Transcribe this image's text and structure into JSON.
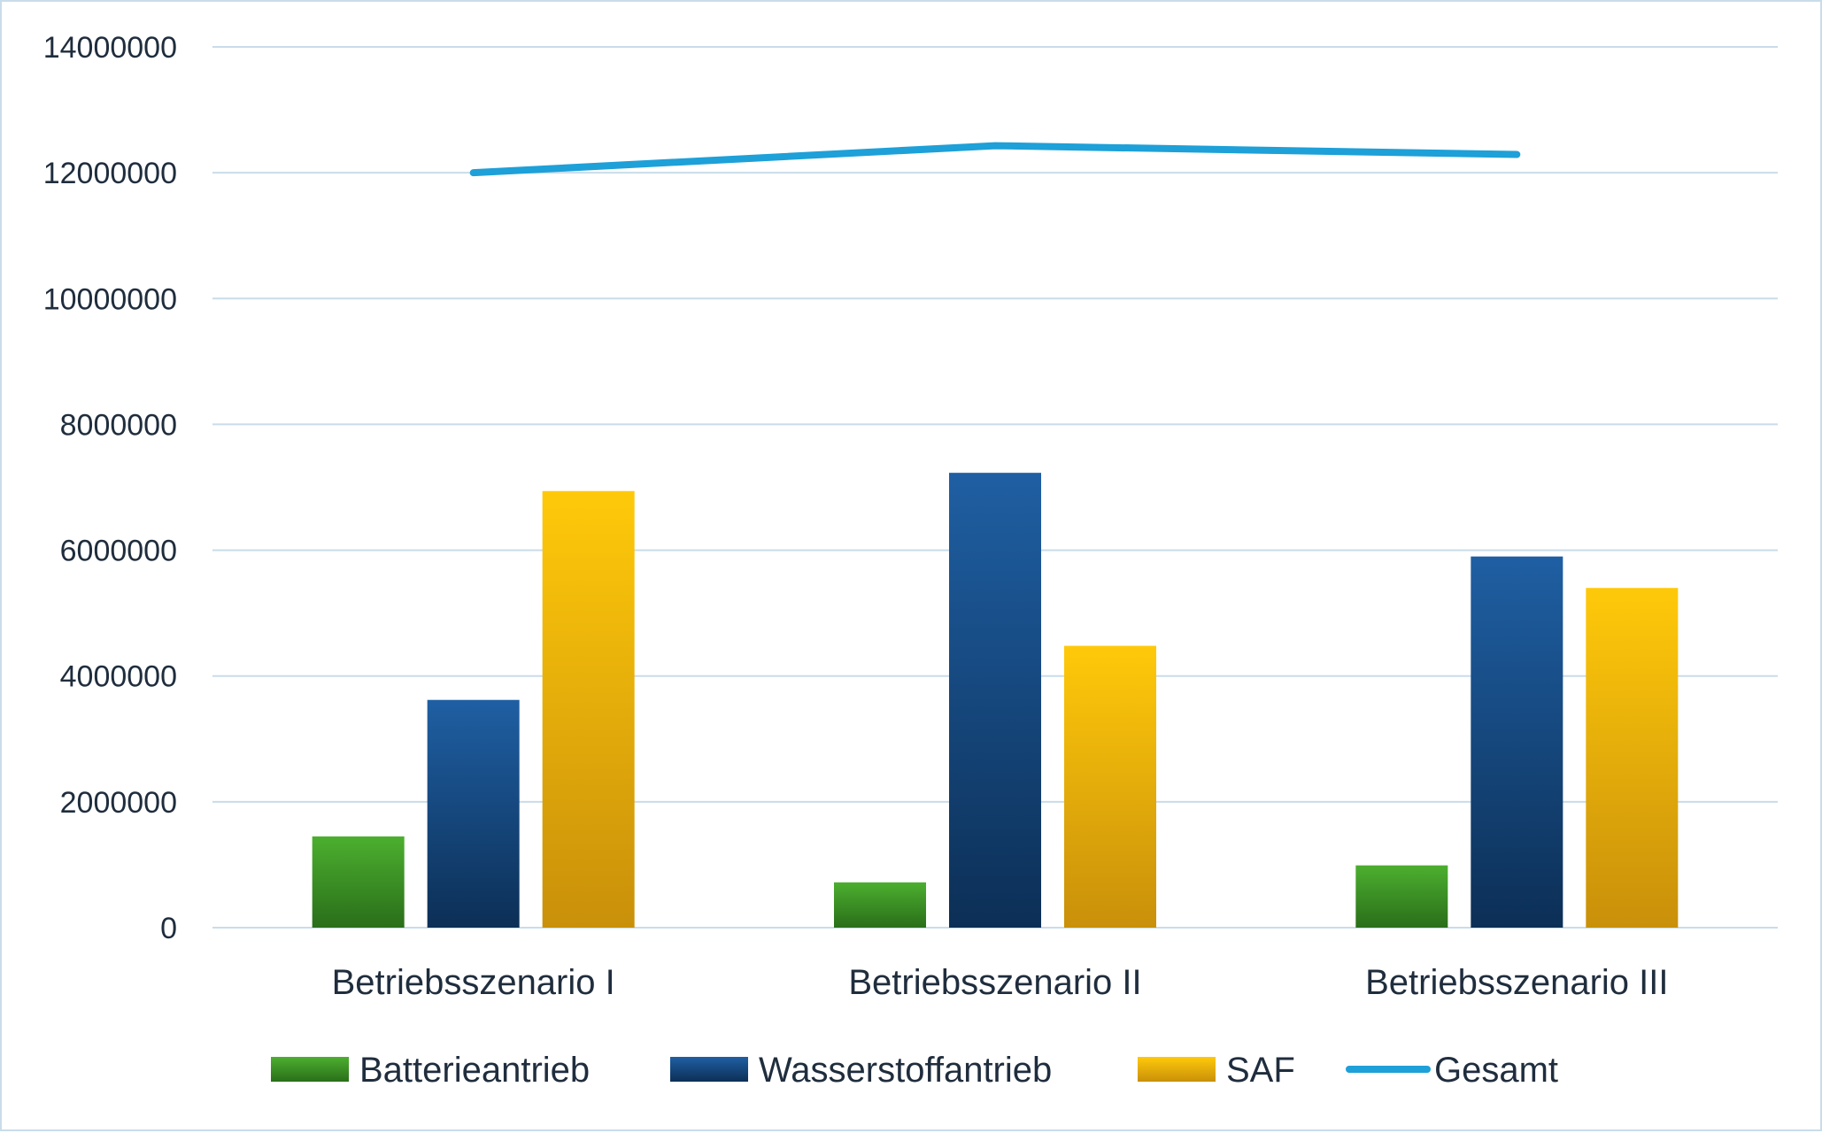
{
  "chart_data": {
    "type": "bar",
    "title": "",
    "xlabel": "",
    "ylabel": "",
    "categories": [
      "Betriebsszenario I",
      "Betriebsszenario II",
      "Betriebsszenario III"
    ],
    "ylim": [
      0,
      14000000
    ],
    "yticks": [
      0,
      2000000,
      4000000,
      6000000,
      8000000,
      10000000,
      12000000,
      14000000
    ],
    "ytick_labels": [
      "0",
      "2000000",
      "4000000",
      "6000000",
      "8000000",
      "10000000",
      "12000000",
      "14000000"
    ],
    "grid": true,
    "legend_position": "bottom",
    "series": [
      {
        "name": "Batterieantrieb",
        "kind": "bar",
        "values": [
          1450000,
          720000,
          990000
        ],
        "color_top": "#4caf2f",
        "color_bottom": "#2a6e1a"
      },
      {
        "name": "Wasserstoffantrieb",
        "kind": "bar",
        "values": [
          3620000,
          7230000,
          5900000
        ],
        "color_top": "#1f5fa3",
        "color_bottom": "#0c2f56"
      },
      {
        "name": "SAF",
        "kind": "bar",
        "values": [
          6940000,
          4480000,
          5400000
        ],
        "color_top": "#ffc90a",
        "color_bottom": "#c9900a"
      },
      {
        "name": "Gesamt",
        "kind": "line",
        "values": [
          12000000,
          12430000,
          12290000
        ],
        "color": "#1ea0d8"
      }
    ]
  }
}
